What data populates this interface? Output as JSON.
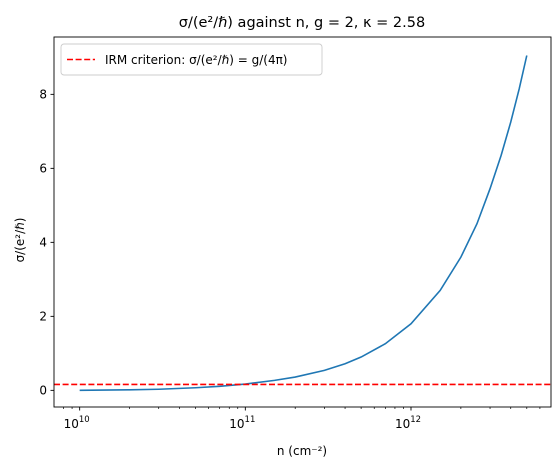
{
  "chart_data": {
    "type": "line",
    "title": "σ/(e²/ℏ) against n, g = 2, κ = 2.58",
    "xlabel": "n (cm⁻²)",
    "ylabel": "σ/(e²/ℏ)",
    "xscale": "log",
    "xlim": [
      7000000000.0,
      7000000000000.0
    ],
    "ylim": [
      -0.45,
      9.55
    ],
    "xticks": [
      {
        "value": 10000000000.0,
        "base": "10",
        "exp": "10"
      },
      {
        "value": 100000000000.0,
        "base": "10",
        "exp": "11"
      },
      {
        "value": 1000000000000.0,
        "base": "10",
        "exp": "12"
      }
    ],
    "yticks": [
      0,
      2,
      4,
      6,
      8
    ],
    "grid": false,
    "legend_position": "top-left",
    "series": [
      {
        "name": "",
        "color": "#1f77b4",
        "style": "solid",
        "x": [
          10000000000.0,
          20000000000.0,
          30000000000.0,
          50000000000.0,
          70000000000.0,
          100000000000.0,
          150000000000.0,
          200000000000.0,
          300000000000.0,
          400000000000.0,
          500000000000.0,
          700000000000.0,
          1000000000000.0,
          1500000000000.0,
          2000000000000.0,
          2500000000000.0,
          3000000000000.0,
          3500000000000.0,
          4000000000000.0,
          4500000000000.0,
          5000000000000.0
        ],
        "y": [
          0.0,
          0.015,
          0.03,
          0.07,
          0.11,
          0.17,
          0.27,
          0.36,
          0.54,
          0.72,
          0.9,
          1.26,
          1.8,
          2.7,
          3.6,
          4.5,
          5.45,
          6.35,
          7.25,
          8.15,
          9.05
        ]
      },
      {
        "name": "IRM criterion: σ/(e²/ℏ) = g/(4π)",
        "color": "#ff0000",
        "style": "dashed",
        "hline": 0.159
      }
    ]
  }
}
